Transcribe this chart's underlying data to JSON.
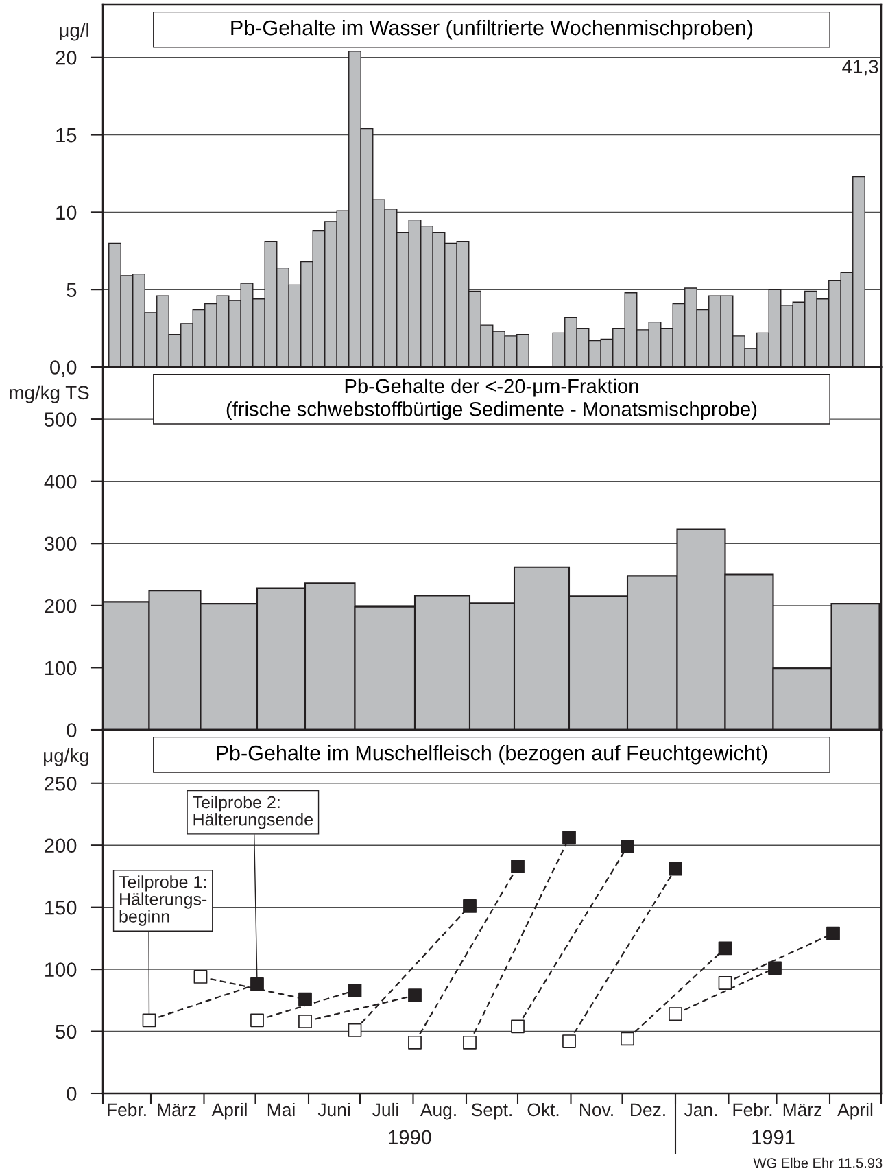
{
  "chart_data": [
    {
      "type": "bar",
      "title": "Pb-Gehalte im Wasser (unfiltrierte Wochenmischproben)",
      "ylabel": "μg/l",
      "x": [
        "1990-02-08",
        "1990-02-15",
        "1990-02-22",
        "1990-03-01",
        "1990-03-08",
        "1990-03-15",
        "1990-03-22",
        "1990-03-29",
        "1990-04-05",
        "1990-04-12",
        "1990-04-19",
        "1990-04-26",
        "1990-05-03",
        "1990-05-10",
        "1990-05-17",
        "1990-05-24",
        "1990-05-31",
        "1990-06-07",
        "1990-06-14",
        "1990-06-21",
        "1990-06-28",
        "1990-07-05",
        "1990-07-12",
        "1990-07-19",
        "1990-07-26",
        "1990-08-02",
        "1990-08-09",
        "1990-08-16",
        "1990-08-23",
        "1990-08-30",
        "1990-09-06",
        "1990-09-13",
        "1990-09-20",
        "1990-09-27",
        "1990-10-04",
        "1990-10-11",
        "1990-10-18",
        "1990-10-25",
        "1990-11-01",
        "1990-11-08",
        "1990-11-15",
        "1990-11-22",
        "1990-11-29",
        "1990-12-06",
        "1990-12-13",
        "1990-12-20",
        "1990-12-27",
        "1991-01-03",
        "1991-01-10",
        "1991-01-17",
        "1991-01-24",
        "1991-01-31",
        "1991-02-07",
        "1991-02-14",
        "1991-02-21",
        "1991-02-28",
        "1991-03-07",
        "1991-03-14",
        "1991-03-21",
        "1991-03-28",
        "1991-04-04",
        "1991-04-11",
        "1991-04-18"
      ],
      "values": [
        8.0,
        5.9,
        6.0,
        3.5,
        4.6,
        2.1,
        2.8,
        3.7,
        4.1,
        4.6,
        4.3,
        5.4,
        4.4,
        8.1,
        6.4,
        5.3,
        6.8,
        8.8,
        9.4,
        10.1,
        20.4,
        15.4,
        10.8,
        10.2,
        8.7,
        9.5,
        9.1,
        8.7,
        8.0,
        8.1,
        4.9,
        2.7,
        2.3,
        2.0,
        2.1,
        null,
        null,
        2.2,
        3.2,
        2.5,
        1.7,
        1.8,
        2.5,
        4.8,
        2.4,
        2.9,
        2.5,
        4.1,
        5.1,
        3.7,
        4.6,
        4.6,
        2.0,
        1.2,
        2.2,
        5.0,
        4.0,
        4.2,
        4.9,
        4.4,
        5.6,
        6.1,
        12.3
      ],
      "color": "#bcbec0",
      "xlim": [
        "1990-02-01",
        "1991-05-01"
      ],
      "ylim": [
        0,
        23.4
      ],
      "yticks": [
        {
          "value": 0,
          "label": "0,0"
        },
        5,
        10,
        15,
        20
      ],
      "grid": "y",
      "tick_labels": "y",
      "annotations": [
        "41,3"
      ]
    },
    {
      "type": "histogram",
      "title": "Pb-Gehalte der <-20-μm-Fraktion",
      "subtitle": "(frische schwebstoffbürtige Sedimente - Monatsmischprobe)",
      "ylabel": "mg/kg TS",
      "bins": [
        "1990-02-01",
        "1990-02-28",
        "1990-03-30",
        "1990-05-02",
        "1990-05-30",
        "1990-06-28",
        "1990-08-02",
        "1990-09-03",
        "1990-09-29",
        "1990-10-31",
        "1990-12-04",
        "1991-01-02",
        "1991-01-30",
        "1991-02-27",
        "1991-04-02",
        "1991-04-30"
      ],
      "values": [
        206,
        224,
        203,
        228,
        236,
        198,
        216,
        204,
        262,
        215,
        248,
        323,
        250,
        99,
        203
      ],
      "color": "#bcbec0",
      "xlim": [
        "1990-02-01",
        "1991-05-01"
      ],
      "ylim": [
        0,
        584
      ],
      "yticks": [
        0,
        100,
        200,
        300,
        400,
        500
      ],
      "grid": "y",
      "tick_labels": "y"
    },
    {
      "type": "line",
      "title": "Pb-Gehalte im Muschelfleisch (bezogen auf Feuchtgewicht)",
      "ylabel": "μg/kg",
      "marker": "square",
      "line_style": "dashed",
      "series": [
        {
          "x": [
            "1990-02-28",
            "1990-05-02"
          ],
          "values": [
            59,
            88
          ],
          "color": "#231f20",
          "colors": [
            "#ffffff",
            "#231f20"
          ]
        },
        {
          "x": [
            "1990-03-30",
            "1990-05-30"
          ],
          "values": [
            94,
            76
          ],
          "color": "#231f20",
          "colors": [
            "#ffffff",
            "#231f20"
          ]
        },
        {
          "x": [
            "1990-05-02",
            "1990-06-28"
          ],
          "values": [
            59,
            83
          ],
          "color": "#231f20",
          "colors": [
            "#ffffff",
            "#231f20"
          ]
        },
        {
          "x": [
            "1990-05-30",
            "1990-08-02"
          ],
          "values": [
            58,
            79
          ],
          "color": "#231f20",
          "colors": [
            "#ffffff",
            "#231f20"
          ]
        },
        {
          "x": [
            "1990-06-28",
            "1990-09-03"
          ],
          "values": [
            51,
            151
          ],
          "color": "#231f20",
          "colors": [
            "#ffffff",
            "#231f20"
          ]
        },
        {
          "x": [
            "1990-08-02",
            "1990-10-01"
          ],
          "values": [
            41,
            183
          ],
          "color": "#231f20",
          "colors": [
            "#ffffff",
            "#231f20"
          ]
        },
        {
          "x": [
            "1990-09-03",
            "1990-10-31"
          ],
          "values": [
            41,
            206
          ],
          "color": "#231f20",
          "colors": [
            "#ffffff",
            "#231f20"
          ]
        },
        {
          "x": [
            "1990-10-01",
            "1990-12-04"
          ],
          "values": [
            54,
            199
          ],
          "color": "#231f20",
          "colors": [
            "#ffffff",
            "#231f20"
          ]
        },
        {
          "x": [
            "1990-10-31",
            "1991-01-01"
          ],
          "values": [
            42,
            181
          ],
          "color": "#231f20",
          "colors": [
            "#ffffff",
            "#231f20"
          ]
        },
        {
          "x": [
            "1990-12-04",
            "1991-01-30"
          ],
          "values": [
            44,
            117
          ],
          "color": "#231f20",
          "colors": [
            "#ffffff",
            "#231f20"
          ]
        },
        {
          "x": [
            "1991-01-01",
            "1991-02-28"
          ],
          "values": [
            64,
            101
          ],
          "color": "#231f20",
          "colors": [
            "#ffffff",
            "#231f20"
          ]
        },
        {
          "x": [
            "1991-01-30",
            "1991-04-03"
          ],
          "values": [
            89,
            129
          ],
          "color": "#231f20",
          "colors": [
            "#ffffff",
            "#231f20"
          ]
        }
      ],
      "xlim": [
        "1990-02-01",
        "1991-05-01"
      ],
      "ylim": [
        0,
        293
      ],
      "yticks": [
        0,
        50,
        100,
        150,
        200,
        250
      ],
      "xticks": [
        {
          "value": "1990-02-01",
          "label": null
        },
        {
          "value": "1990-02-15",
          "label": "Febr."
        },
        {
          "value": "1990-03-01",
          "label": null
        },
        {
          "value": "1990-03-16",
          "label": "März"
        },
        {
          "value": "1990-04-01",
          "label": null
        },
        {
          "value": "1990-04-16",
          "label": "April"
        },
        {
          "value": "1990-05-01",
          "label": null
        },
        {
          "value": "1990-05-16",
          "label": "Mai"
        },
        {
          "value": "1990-06-01",
          "label": null
        },
        {
          "value": "1990-06-16",
          "label": "Juni"
        },
        {
          "value": "1990-07-01",
          "label": null
        },
        {
          "value": "1990-07-16",
          "label": "Juli"
        },
        {
          "value": "1990-08-01",
          "label": null
        },
        {
          "value": "1990-08-16",
          "label": "Aug."
        },
        {
          "value": "1990-09-01",
          "label": null
        },
        {
          "value": "1990-09-16",
          "label": "Sept."
        },
        {
          "value": "1990-10-01",
          "label": null
        },
        {
          "value": "1990-10-16",
          "label": "Okt."
        },
        {
          "value": "1990-11-01",
          "label": null
        },
        {
          "value": "1990-11-16",
          "label": "Nov."
        },
        {
          "value": "1990-12-01",
          "label": null
        },
        {
          "value": "1990-12-16",
          "label": "Dez."
        },
        {
          "value": "1991-01-01",
          "label": null
        },
        {
          "value": "1991-01-16",
          "label": "Jan."
        },
        {
          "value": "1991-02-01",
          "label": null
        },
        {
          "value": "1991-02-15",
          "label": "Febr."
        },
        {
          "value": "1991-03-01",
          "label": null
        },
        {
          "value": "1991-03-16",
          "label": "März"
        },
        {
          "value": "1991-04-01",
          "label": null
        },
        {
          "value": "1991-04-16",
          "label": "April"
        },
        {
          "value": "1991-05-01",
          "label": null
        }
      ],
      "x2lim": [
        "1990-02-01",
        "1991-05-01"
      ],
      "x2ticks": [
        {
          "value": "1990-07-30",
          "label": "1990"
        },
        {
          "value": "1991-02-27",
          "label": "1991"
        }
      ],
      "grid": "y",
      "annotations": [
        {
          "text": "Teilprobe 1:\nHälterungs-\nbeginn",
          "x": "1990-02-28",
          "y": 59
        },
        {
          "text": "Teilprobe 2:\nHälterungsende",
          "x": "1990-05-02",
          "y": 88
        },
        "WG Elbe Ehr 11.5.93"
      ]
    }
  ]
}
